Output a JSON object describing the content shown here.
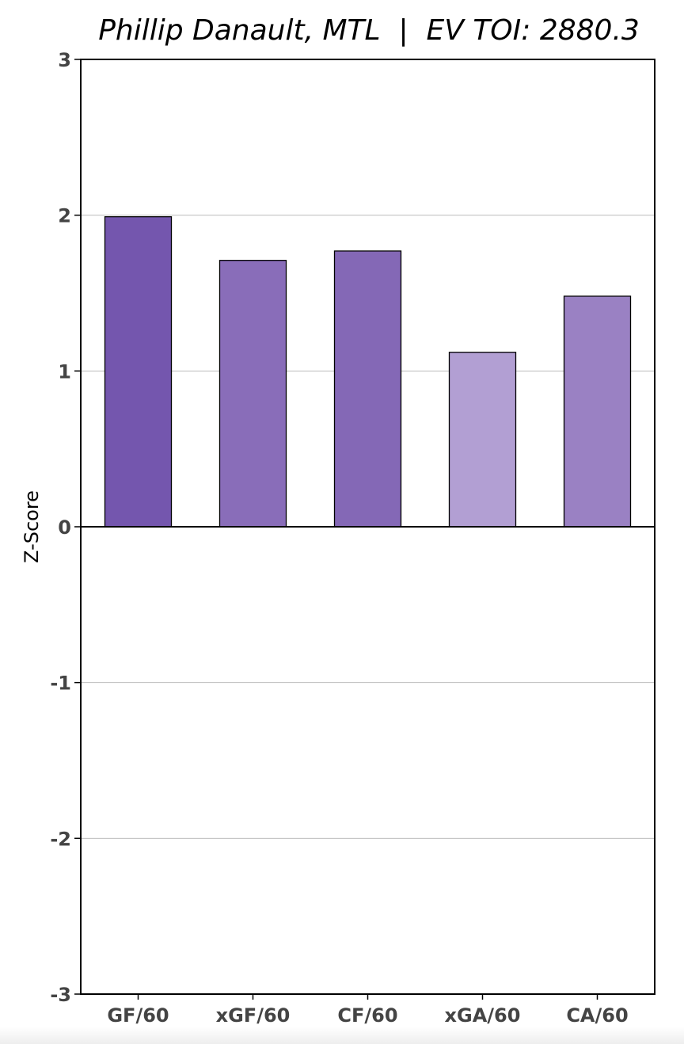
{
  "chart_data": {
    "type": "bar",
    "title": "Phillip Danault, MTL  |  EV TOI: 2880.3",
    "xlabel": "",
    "ylabel": "Z-Score",
    "categories": [
      "GF/60",
      "xGF/60",
      "CF/60",
      "xGA/60",
      "CA/60"
    ],
    "values": [
      1.99,
      1.71,
      1.77,
      1.12,
      1.48
    ],
    "bar_colors": [
      "#7456ae",
      "#896db9",
      "#8468b6",
      "#b29fd3",
      "#9a81c3"
    ],
    "ylim": [
      -3,
      3
    ],
    "yticks": [
      3,
      2,
      1,
      0,
      -1,
      -2,
      -3
    ],
    "ytick_labels": [
      "3",
      "2",
      "1",
      "0",
      "-1",
      "-2",
      "-3"
    ],
    "grid": true,
    "legend": "none"
  }
}
